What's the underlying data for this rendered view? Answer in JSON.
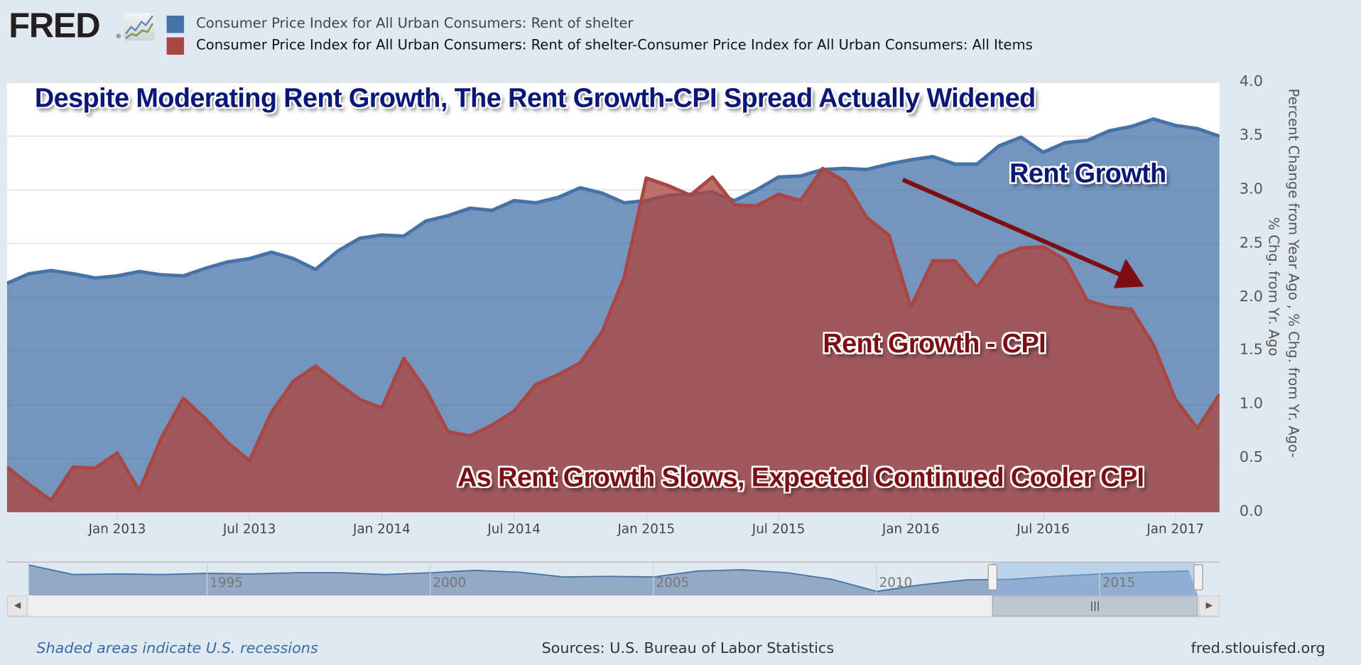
{
  "header": {
    "logo_text": "FRED",
    "logo_mark": "®",
    "logo_icon": "chart-line-icon"
  },
  "legend": [
    {
      "label": "Consumer Price Index for All Urban Consumers: Rent of shelter",
      "color": "#4572a7"
    },
    {
      "label": "Consumer Price Index for All Urban Consumers: Rent of shelter-Consumer Price Index for All Urban Consumers: All Items",
      "color": "#aa4643"
    }
  ],
  "annotations": {
    "title": "Despite Moderating Rent Growth, The Rent Growth-CPI Spread Actually Widened",
    "rent_growth": "Rent Growth",
    "spread": "Rent Growth - CPI",
    "bottom": "As Rent Growth Slows, Expected Continued Cooler CPI",
    "arrow_color": "#7b0f14"
  },
  "chart_data": {
    "type": "area",
    "x": [
      "2012-08",
      "2012-09",
      "2012-10",
      "2012-11",
      "2012-12",
      "2013-01",
      "2013-02",
      "2013-03",
      "2013-04",
      "2013-05",
      "2013-06",
      "2013-07",
      "2013-08",
      "2013-09",
      "2013-10",
      "2013-11",
      "2013-12",
      "2014-01",
      "2014-02",
      "2014-03",
      "2014-04",
      "2014-05",
      "2014-06",
      "2014-07",
      "2014-08",
      "2014-09",
      "2014-10",
      "2014-11",
      "2014-12",
      "2015-01",
      "2015-02",
      "2015-03",
      "2015-04",
      "2015-05",
      "2015-06",
      "2015-07",
      "2015-08",
      "2015-09",
      "2015-10",
      "2015-11",
      "2015-12",
      "2016-01",
      "2016-02",
      "2016-03",
      "2016-04",
      "2016-05",
      "2016-06",
      "2016-07",
      "2016-08",
      "2016-09",
      "2016-10",
      "2016-11",
      "2016-12",
      "2017-01",
      "2017-02",
      "2017-03"
    ],
    "series": [
      {
        "name": "Consumer Price Index for All Urban Consumers: Rent of shelter",
        "color": "#4572a7",
        "values": [
          2.13,
          2.22,
          2.25,
          2.22,
          2.18,
          2.2,
          2.24,
          2.21,
          2.2,
          2.27,
          2.33,
          2.36,
          2.42,
          2.36,
          2.26,
          2.43,
          2.55,
          2.58,
          2.57,
          2.71,
          2.76,
          2.83,
          2.81,
          2.9,
          2.88,
          2.93,
          3.02,
          2.97,
          2.88,
          2.9,
          2.95,
          2.96,
          2.98,
          2.9,
          3.0,
          3.12,
          3.13,
          3.19,
          3.2,
          3.19,
          3.24,
          3.28,
          3.31,
          3.24,
          3.24,
          3.41,
          3.49,
          3.35,
          3.44,
          3.46,
          3.55,
          3.59,
          3.66,
          3.6,
          3.57,
          3.5
        ]
      },
      {
        "name": "Consumer Price Index for All Urban Consumers: Rent of shelter-Consumer Price Index for All Urban Consumers: All Items",
        "color": "#aa4643",
        "values": [
          0.42,
          0.26,
          0.11,
          0.42,
          0.41,
          0.55,
          0.2,
          0.69,
          1.06,
          0.87,
          0.65,
          0.48,
          0.93,
          1.22,
          1.36,
          1.2,
          1.05,
          0.97,
          1.43,
          1.14,
          0.75,
          0.71,
          0.81,
          0.94,
          1.19,
          1.28,
          1.39,
          1.68,
          2.19,
          3.11,
          3.04,
          2.95,
          3.12,
          2.86,
          2.85,
          2.96,
          2.9,
          3.2,
          3.08,
          2.74,
          2.58,
          1.91,
          2.34,
          2.34,
          2.09,
          2.38,
          2.46,
          2.47,
          2.35,
          1.97,
          1.91,
          1.89,
          1.56,
          1.05,
          0.78,
          1.1
        ]
      }
    ],
    "ylim": [
      0,
      4.0
    ],
    "yticks": [
      "0.0",
      "0.5",
      "1.0",
      "1.5",
      "2.0",
      "2.5",
      "3.0",
      "3.5",
      "4.0"
    ],
    "xticks": [
      {
        "label": "Jan 2013",
        "date": "2013-01"
      },
      {
        "label": "Jul 2013",
        "date": "2013-07"
      },
      {
        "label": "Jan 2014",
        "date": "2014-01"
      },
      {
        "label": "Jul 2014",
        "date": "2014-07"
      },
      {
        "label": "Jan 2015",
        "date": "2015-01"
      },
      {
        "label": "Jul 2015",
        "date": "2015-07"
      },
      {
        "label": "Jan 2016",
        "date": "2016-01"
      },
      {
        "label": "Jul 2016",
        "date": "2016-07"
      },
      {
        "label": "Jan 2017",
        "date": "2017-01"
      }
    ],
    "ylabel_line1": "Percent Change from Year Ago , % Chg. from Yr. Ago-",
    "ylabel_line2": "% Chg. from Yr. Ago",
    "yaxis_side": "right",
    "grid": true,
    "legend_placement": "top"
  },
  "navigator": {
    "ticks": [
      "1995",
      "2000",
      "2005",
      "2010",
      "2015"
    ],
    "years": [
      1991,
      1992,
      1993,
      1994,
      1995,
      1996,
      1997,
      1998,
      1999,
      2000,
      2001,
      2002,
      2003,
      2004,
      2005,
      2006,
      2007,
      2008,
      2009,
      2010,
      2011,
      2012,
      2013,
      2014,
      2015,
      2016,
      2017
    ],
    "values": [
      4.6,
      3.0,
      3.1,
      3.0,
      3.2,
      3.1,
      3.3,
      3.3,
      3.0,
      3.3,
      3.7,
      3.4,
      2.6,
      2.7,
      2.6,
      3.6,
      3.8,
      3.3,
      2.2,
      0.2,
      1.3,
      2.1,
      2.2,
      2.7,
      3.1,
      3.4,
      3.6
    ],
    "selected_range": [
      "2012-08",
      "2017-03"
    ],
    "handle_grip": "|||"
  },
  "footer": {
    "recessions_note": "Shaded areas indicate U.S. recessions",
    "sources": "Sources: U.S. Bureau of Labor Statistics",
    "site": "fred.stlouisfed.org"
  }
}
